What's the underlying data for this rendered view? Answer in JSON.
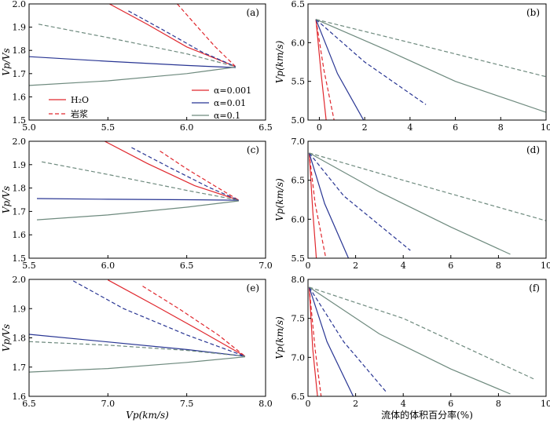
{
  "colors": {
    "red": "#e0282e",
    "blue": "#283593",
    "gray": "#6e8a7e"
  },
  "chart_data": [
    {
      "panel": "(a)",
      "type": "line",
      "ylabel": "Vp/Vs",
      "xlabel": "",
      "xlim": [
        5.0,
        6.5
      ],
      "ylim": [
        1.5,
        2.0
      ],
      "xticks": [
        "5.0",
        "5.5",
        "6.0",
        "6.5"
      ],
      "yticks": [
        "1.5",
        "1.6",
        "1.7",
        "1.8",
        "1.9",
        "2.0"
      ],
      "series": [
        {
          "color": "red",
          "dash": false,
          "points": [
            [
              5.51,
              2.0
            ],
            [
              5.75,
              1.912
            ],
            [
              6.0,
              1.815
            ],
            [
              6.31,
              1.73
            ]
          ]
        },
        {
          "color": "red",
          "dash": true,
          "points": [
            [
              5.94,
              2.0
            ],
            [
              6.05,
              1.915
            ],
            [
              6.18,
              1.816
            ],
            [
              6.31,
              1.73
            ]
          ]
        },
        {
          "color": "blue",
          "dash": false,
          "points": [
            [
              5.0,
              1.773
            ],
            [
              5.5,
              1.753
            ],
            [
              6.0,
              1.735
            ],
            [
              6.31,
              1.726
            ]
          ]
        },
        {
          "color": "blue",
          "dash": true,
          "points": [
            [
              5.63,
              1.97
            ],
            [
              5.85,
              1.888
            ],
            [
              6.1,
              1.792
            ],
            [
              6.31,
              1.73
            ]
          ]
        },
        {
          "color": "gray",
          "dash": false,
          "points": [
            [
              5.0,
              1.649
            ],
            [
              5.5,
              1.669
            ],
            [
              6.0,
              1.7
            ],
            [
              6.31,
              1.728
            ]
          ]
        },
        {
          "color": "gray",
          "dash": true,
          "points": [
            [
              5.06,
              1.913
            ],
            [
              5.5,
              1.855
            ],
            [
              6.0,
              1.785
            ],
            [
              6.31,
              1.73
            ]
          ]
        }
      ]
    },
    {
      "panel": "(b)",
      "type": "line",
      "ylabel": "Vp(km/s)",
      "xlabel": "",
      "xlim": [
        -0.5,
        10.0
      ],
      "ylim": [
        5.0,
        6.5
      ],
      "xticks": [
        "0",
        "2",
        "4",
        "6",
        "8",
        "10"
      ],
      "yticks": [
        "5.0",
        "5.5",
        "6.0",
        "6.5"
      ],
      "series": [
        {
          "color": "red",
          "dash": false,
          "points": [
            [
              -0.15,
              6.3
            ],
            [
              0.08,
              5.6
            ],
            [
              0.3,
              5.0
            ]
          ]
        },
        {
          "color": "red",
          "dash": true,
          "points": [
            [
              -0.15,
              6.3
            ],
            [
              0.2,
              5.65
            ],
            [
              0.65,
              5.0
            ]
          ]
        },
        {
          "color": "blue",
          "dash": false,
          "points": [
            [
              -0.15,
              6.3
            ],
            [
              0.8,
              5.6
            ],
            [
              1.95,
              5.0
            ]
          ]
        },
        {
          "color": "blue",
          "dash": true,
          "points": [
            [
              -0.15,
              6.3
            ],
            [
              2.0,
              5.75
            ],
            [
              4.7,
              5.2
            ]
          ]
        },
        {
          "color": "gray",
          "dash": false,
          "points": [
            [
              -0.15,
              6.3
            ],
            [
              3.0,
              5.9
            ],
            [
              6.0,
              5.5
            ],
            [
              10.0,
              5.1
            ]
          ]
        },
        {
          "color": "gray",
          "dash": true,
          "points": [
            [
              -0.15,
              6.3
            ],
            [
              4.0,
              6.0
            ],
            [
              10.0,
              5.56
            ]
          ]
        }
      ]
    },
    {
      "panel": "(c)",
      "type": "line",
      "ylabel": "Vp/Vs",
      "xlabel": "",
      "xlim": [
        5.5,
        7.0
      ],
      "ylim": [
        1.5,
        2.0
      ],
      "xticks": [
        "5.5",
        "6.0",
        "6.5",
        "7.0"
      ],
      "yticks": [
        "1.5",
        "1.6",
        "1.7",
        "1.8",
        "1.9",
        "2.0"
      ],
      "series": [
        {
          "color": "red",
          "dash": false,
          "points": [
            [
              5.98,
              2.0
            ],
            [
              6.25,
              1.905
            ],
            [
              6.55,
              1.81
            ],
            [
              6.83,
              1.748
            ]
          ]
        },
        {
          "color": "red",
          "dash": true,
          "points": [
            [
              6.33,
              1.958
            ],
            [
              6.5,
              1.882
            ],
            [
              6.7,
              1.8
            ],
            [
              6.83,
              1.748
            ]
          ]
        },
        {
          "color": "blue",
          "dash": false,
          "points": [
            [
              5.55,
              1.755
            ],
            [
              6.0,
              1.752
            ],
            [
              6.5,
              1.75
            ],
            [
              6.83,
              1.748
            ]
          ]
        },
        {
          "color": "blue",
          "dash": true,
          "points": [
            [
              6.15,
              1.973
            ],
            [
              6.4,
              1.885
            ],
            [
              6.65,
              1.8
            ],
            [
              6.83,
              1.748
            ]
          ]
        },
        {
          "color": "gray",
          "dash": false,
          "points": [
            [
              5.55,
              1.664
            ],
            [
              6.0,
              1.685
            ],
            [
              6.5,
              1.718
            ],
            [
              6.83,
              1.745
            ]
          ]
        },
        {
          "color": "gray",
          "dash": true,
          "points": [
            [
              5.58,
              1.912
            ],
            [
              6.0,
              1.858
            ],
            [
              6.5,
              1.79
            ],
            [
              6.83,
              1.748
            ]
          ]
        }
      ]
    },
    {
      "panel": "(d)",
      "type": "line",
      "ylabel": "Vp(km/s)",
      "xlabel": "",
      "xlim": [
        0.0,
        10.0
      ],
      "ylim": [
        5.5,
        7.0
      ],
      "xticks": [
        "0",
        "2",
        "4",
        "6",
        "8",
        "10"
      ],
      "yticks": [
        "5.5",
        "6.0",
        "6.5",
        "7.0"
      ],
      "series": [
        {
          "color": "red",
          "dash": false,
          "points": [
            [
              0.05,
              6.85
            ],
            [
              0.2,
              6.1
            ],
            [
              0.35,
              5.5
            ]
          ]
        },
        {
          "color": "red",
          "dash": true,
          "points": [
            [
              0.05,
              6.85
            ],
            [
              0.3,
              6.2
            ],
            [
              0.75,
              5.5
            ]
          ]
        },
        {
          "color": "blue",
          "dash": false,
          "points": [
            [
              0.05,
              6.85
            ],
            [
              0.7,
              6.2
            ],
            [
              1.7,
              5.5
            ]
          ]
        },
        {
          "color": "blue",
          "dash": true,
          "points": [
            [
              0.05,
              6.85
            ],
            [
              1.5,
              6.3
            ],
            [
              4.3,
              5.6
            ]
          ]
        },
        {
          "color": "gray",
          "dash": false,
          "points": [
            [
              0.05,
              6.85
            ],
            [
              3.0,
              6.35
            ],
            [
              6.0,
              5.9
            ],
            [
              8.5,
              5.55
            ]
          ]
        },
        {
          "color": "gray",
          "dash": true,
          "points": [
            [
              0.05,
              6.85
            ],
            [
              4.0,
              6.5
            ],
            [
              10.0,
              5.98
            ]
          ]
        }
      ]
    },
    {
      "panel": "(e)",
      "type": "line",
      "ylabel": "Vp/Vs",
      "xlabel": "Vp(km/s)",
      "xlim": [
        6.5,
        8.0
      ],
      "ylim": [
        1.6,
        2.0
      ],
      "xticks": [
        "6.5",
        "7.0",
        "7.5",
        "8.0"
      ],
      "yticks": [
        "1.6",
        "1.7",
        "1.8",
        "1.9",
        "2.0"
      ],
      "series": [
        {
          "color": "red",
          "dash": false,
          "points": [
            [
              7.0,
              1.998
            ],
            [
              7.3,
              1.91
            ],
            [
              7.6,
              1.82
            ],
            [
              7.87,
              1.737
            ]
          ]
        },
        {
          "color": "red",
          "dash": true,
          "points": [
            [
              7.22,
              1.977
            ],
            [
              7.45,
              1.9
            ],
            [
              7.7,
              1.81
            ],
            [
              7.87,
              1.737
            ]
          ]
        },
        {
          "color": "blue",
          "dash": false,
          "points": [
            [
              6.5,
              1.812
            ],
            [
              7.0,
              1.786
            ],
            [
              7.5,
              1.76
            ],
            [
              7.87,
              1.737
            ]
          ]
        },
        {
          "color": "blue",
          "dash": true,
          "points": [
            [
              6.78,
              1.995
            ],
            [
              7.1,
              1.9
            ],
            [
              7.5,
              1.81
            ],
            [
              7.87,
              1.737
            ]
          ]
        },
        {
          "color": "gray",
          "dash": false,
          "points": [
            [
              6.5,
              1.683
            ],
            [
              7.0,
              1.695
            ],
            [
              7.5,
              1.716
            ],
            [
              7.87,
              1.735
            ]
          ]
        },
        {
          "color": "gray",
          "dash": true,
          "points": [
            [
              6.5,
              1.787
            ],
            [
              7.0,
              1.775
            ],
            [
              7.5,
              1.757
            ],
            [
              7.87,
              1.737
            ]
          ]
        }
      ]
    },
    {
      "panel": "(f)",
      "type": "line",
      "ylabel": "Vp(km/s)",
      "xlabel": "流体的体积百分率(%)",
      "xlim": [
        0.0,
        10.0
      ],
      "ylim": [
        6.5,
        8.0
      ],
      "xticks": [
        "0",
        "2",
        "4",
        "6",
        "8",
        "10"
      ],
      "yticks": [
        "6.5",
        "7.0",
        "7.5",
        "8.0"
      ],
      "series": [
        {
          "color": "red",
          "dash": false,
          "points": [
            [
              0.05,
              7.9
            ],
            [
              0.2,
              7.1
            ],
            [
              0.4,
              6.5
            ]
          ]
        },
        {
          "color": "red",
          "dash": true,
          "points": [
            [
              0.05,
              7.9
            ],
            [
              0.3,
              7.1
            ],
            [
              0.55,
              6.5
            ]
          ]
        },
        {
          "color": "blue",
          "dash": false,
          "points": [
            [
              0.05,
              7.9
            ],
            [
              0.8,
              7.2
            ],
            [
              1.9,
              6.5
            ]
          ]
        },
        {
          "color": "blue",
          "dash": true,
          "points": [
            [
              0.05,
              7.9
            ],
            [
              1.5,
              7.2
            ],
            [
              3.3,
              6.55
            ]
          ]
        },
        {
          "color": "gray",
          "dash": false,
          "points": [
            [
              0.05,
              7.9
            ],
            [
              3.0,
              7.3
            ],
            [
              6.0,
              6.85
            ],
            [
              8.5,
              6.53
            ]
          ]
        },
        {
          "color": "gray",
          "dash": true,
          "points": [
            [
              0.05,
              7.9
            ],
            [
              4.0,
              7.5
            ],
            [
              9.5,
              6.72
            ]
          ]
        }
      ]
    }
  ],
  "legend": {
    "fluid": [
      {
        "label": "H₂O",
        "color": "red",
        "dash": false
      },
      {
        "label": "岩浆",
        "color": "red",
        "dash": true
      }
    ],
    "alpha": [
      {
        "label": "α=0.001",
        "color": "red",
        "dash": false
      },
      {
        "label": "α=0.01",
        "color": "blue",
        "dash": false
      },
      {
        "label": "α=0.1",
        "color": "gray",
        "dash": false
      }
    ]
  }
}
